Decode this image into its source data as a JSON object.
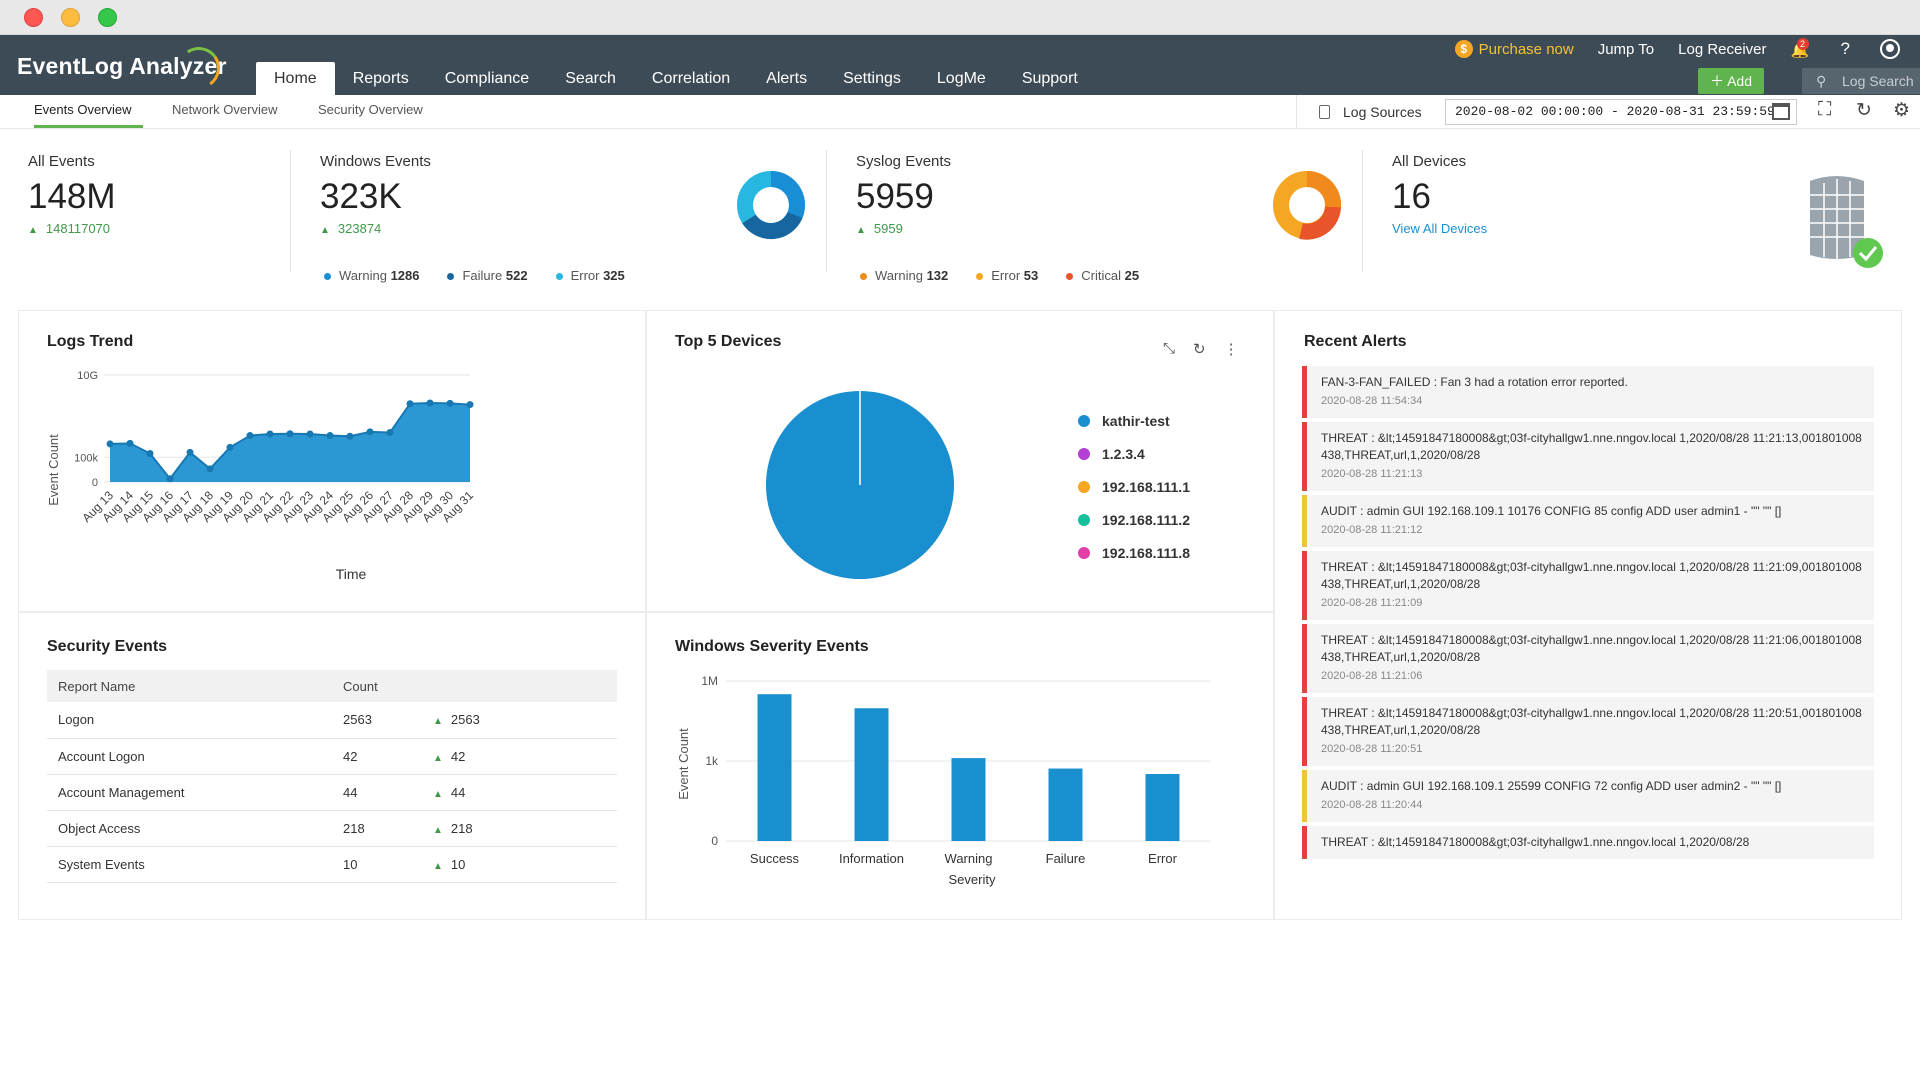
{
  "window": {
    "controls": [
      "close",
      "minimize",
      "maximize"
    ]
  },
  "app": {
    "name": "EventLog Analyzer"
  },
  "nav": [
    {
      "label": "Home",
      "active": true
    },
    {
      "label": "Reports"
    },
    {
      "label": "Compliance"
    },
    {
      "label": "Search"
    },
    {
      "label": "Correlation"
    },
    {
      "label": "Alerts"
    },
    {
      "label": "Settings"
    },
    {
      "label": "LogMe"
    },
    {
      "label": "Support"
    }
  ],
  "topright": {
    "purchase": "Purchase now",
    "jump_to": "Jump To",
    "log_receiver": "Log Receiver",
    "notifications": "2",
    "help": "?",
    "add": "Add",
    "log_search": "Log Search"
  },
  "subtabs": [
    {
      "label": "Events Overview",
      "active": true
    },
    {
      "label": "Network Overview"
    },
    {
      "label": "Security Overview"
    }
  ],
  "toolbar": {
    "log_sources": "Log Sources",
    "date_range": "2020-08-02 00:00:00 - 2020-08-31 23:59:59"
  },
  "stats": {
    "all_events": {
      "label": "All Events",
      "value": "148M",
      "delta": "148117070"
    },
    "windows": {
      "label": "Windows Events",
      "value": "323K",
      "delta": "323874",
      "legend": [
        {
          "name": "Warning",
          "count": "1286",
          "color": "#1a8ed4"
        },
        {
          "name": "Failure",
          "count": "522",
          "color": "#17669f"
        },
        {
          "name": "Error",
          "count": "325",
          "color": "#27b7e0"
        }
      ]
    },
    "syslog": {
      "label": "Syslog Events",
      "value": "5959",
      "delta": "5959",
      "legend": [
        {
          "name": "Warning",
          "count": "132",
          "color": "#f08a1c"
        },
        {
          "name": "Error",
          "count": "53",
          "color": "#f5a623"
        },
        {
          "name": "Critical",
          "count": "25",
          "color": "#e9552b"
        }
      ]
    },
    "devices": {
      "label": "All Devices",
      "value": "16",
      "link": "View All Devices"
    }
  },
  "colors": {
    "accent": "#1a8fcf",
    "success": "#5fb44e",
    "header": "#3d4b56",
    "danger": "#e0433a",
    "warning": "#f0c23d"
  },
  "logs_trend": {
    "title": "Logs Trend"
  },
  "top_devices": {
    "title": "Top 5 Devices",
    "legend": [
      {
        "name": "kathir-test",
        "color": "#1a8fcf"
      },
      {
        "name": "1.2.3.4",
        "color": "#b43fd4"
      },
      {
        "name": "192.168.111.1",
        "color": "#f5a623"
      },
      {
        "name": "192.168.111.2",
        "color": "#16c09b"
      },
      {
        "name": "192.168.111.8",
        "color": "#e03fa7"
      }
    ]
  },
  "severity": {
    "title": "Windows Severity Events"
  },
  "security": {
    "title": "Security Events",
    "columns": [
      "Report Name",
      "Count"
    ],
    "rows": [
      {
        "name": "Logon",
        "count": "2563",
        "trend": "2563"
      },
      {
        "name": "Account Logon",
        "count": "42",
        "trend": "42"
      },
      {
        "name": "Account Management",
        "count": "44",
        "trend": "44"
      },
      {
        "name": "Object Access",
        "count": "218",
        "trend": "218"
      },
      {
        "name": "System Events",
        "count": "10",
        "trend": "10"
      }
    ]
  },
  "alerts": {
    "title": "Recent Alerts",
    "items": [
      {
        "type": "threat",
        "msg": "FAN-3-FAN_FAILED : Fan 3 had a rotation error reported.",
        "time": "2020-08-28 11:54:34"
      },
      {
        "type": "threat",
        "msg": "THREAT : &lt;14591847180008&gt;03f-cityhallgw1.nne.nngov.local 1,2020/08/28 11:21:13,001801008438,THREAT,url,1,2020/08/28",
        "time": "2020-08-28 11:21:13"
      },
      {
        "type": "audit",
        "msg": "AUDIT : admin GUI 192.168.109.1 10176 CONFIG 85 config ADD user admin1 - \"\" \"\" []",
        "time": "2020-08-28 11:21:12"
      },
      {
        "type": "threat",
        "msg": "THREAT : &lt;14591847180008&gt;03f-cityhallgw1.nne.nngov.local 1,2020/08/28 11:21:09,001801008438,THREAT,url,1,2020/08/28",
        "time": "2020-08-28 11:21:09"
      },
      {
        "type": "threat",
        "msg": "THREAT : &lt;14591847180008&gt;03f-cityhallgw1.nne.nngov.local 1,2020/08/28 11:21:06,001801008438,THREAT,url,1,2020/08/28",
        "time": "2020-08-28 11:21:06"
      },
      {
        "type": "threat",
        "msg": "THREAT : &lt;14591847180008&gt;03f-cityhallgw1.nne.nngov.local 1,2020/08/28 11:20:51,001801008438,THREAT,url,1,2020/08/28",
        "time": "2020-08-28 11:20:51"
      },
      {
        "type": "audit",
        "msg": "AUDIT : admin GUI 192.168.109.1 25599 CONFIG 72 config ADD user admin2 - \"\" \"\" []",
        "time": "2020-08-28 11:20:44"
      },
      {
        "type": "threat",
        "msg": "THREAT : &lt;14591847180008&gt;03f-cityhallgw1.nne.nngov.local 1,2020/08/28",
        "time": ""
      }
    ]
  },
  "chart_data": [
    {
      "type": "area",
      "title": "Logs Trend",
      "xlabel": "Time",
      "ylabel": "Event Count",
      "yscale": "log",
      "yticks": [
        "0",
        "100k",
        "10G"
      ],
      "categories": [
        "Aug 13",
        "Aug 14",
        "Aug 15",
        "Aug 16",
        "Aug 17",
        "Aug 18",
        "Aug 19",
        "Aug 20",
        "Aug 21",
        "Aug 22",
        "Aug 23",
        "Aug 24",
        "Aug 25",
        "Aug 26",
        "Aug 27",
        "Aug 28",
        "Aug 29",
        "Aug 30",
        "Aug 31"
      ],
      "values": [
        650000,
        700000,
        170000,
        5000,
        200000,
        20000,
        400000,
        2100000,
        2600000,
        2700000,
        2600000,
        2100000,
        1900000,
        3500000,
        3200000,
        180000000,
        200000000,
        190000000,
        160000000
      ],
      "color": "#1a8fcf"
    },
    {
      "type": "pie",
      "title": "Top 5 Devices",
      "labels": [
        "kathir-test",
        "1.2.3.4",
        "192.168.111.1",
        "192.168.111.2",
        "192.168.111.8"
      ],
      "values": [
        99.9,
        0.025,
        0.025,
        0.025,
        0.025
      ]
    },
    {
      "type": "bar",
      "title": "Windows Severity Events",
      "xlabel": "Severity",
      "ylabel": "Event Count",
      "yscale": "log",
      "yticks": [
        "0",
        "1k",
        "1M"
      ],
      "categories": [
        "Success",
        "Information",
        "Warning",
        "Failure",
        "Error"
      ],
      "values": [
        320000,
        95000,
        1286,
        522,
        325
      ],
      "color": "#1a8fcf"
    }
  ]
}
